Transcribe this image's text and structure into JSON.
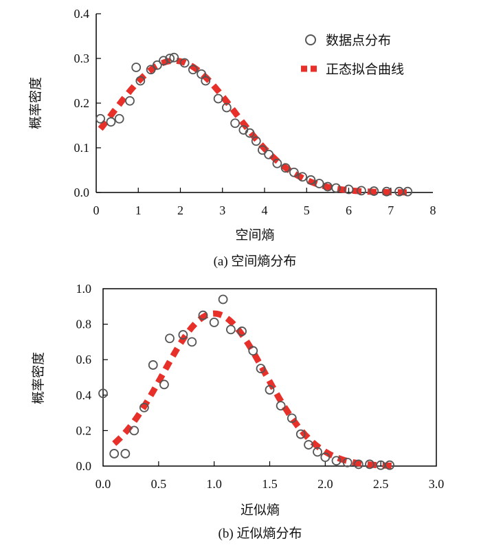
{
  "chart_data": [
    {
      "type": "scatter",
      "caption": "(a) 空间熵分布",
      "xlabel": "空间熵",
      "ylabel": "概率密度",
      "xlim": [
        0,
        8
      ],
      "ylim": [
        0,
        0.4
      ],
      "xticks": [
        "0",
        "1",
        "2",
        "3",
        "4",
        "5",
        "6",
        "7",
        "8"
      ],
      "yticks": [
        "0.0",
        "0.1",
        "0.2",
        "0.3",
        "0.4"
      ],
      "legend_position": "top-right",
      "series": [
        {
          "name": "数据点分布",
          "kind": "scatter",
          "color": "#555555",
          "x": [
            0.1,
            0.35,
            0.55,
            0.8,
            0.95,
            1.05,
            1.3,
            1.45,
            1.6,
            1.75,
            1.85,
            2.1,
            2.3,
            2.5,
            2.6,
            2.9,
            3.1,
            3.3,
            3.5,
            3.65,
            3.8,
            3.95,
            4.1,
            4.3,
            4.5,
            4.7,
            4.9,
            5.1,
            5.3,
            5.5,
            5.7,
            6.0,
            6.3,
            6.6,
            6.9,
            7.2,
            7.4
          ],
          "y": [
            0.165,
            0.158,
            0.165,
            0.205,
            0.28,
            0.25,
            0.275,
            0.285,
            0.295,
            0.3,
            0.302,
            0.29,
            0.275,
            0.265,
            0.25,
            0.21,
            0.19,
            0.155,
            0.14,
            0.133,
            0.115,
            0.095,
            0.085,
            0.065,
            0.055,
            0.045,
            0.035,
            0.028,
            0.02,
            0.013,
            0.01,
            0.007,
            0.004,
            0.003,
            0.002,
            0.002,
            0.002
          ]
        },
        {
          "name": "正态拟合曲线",
          "kind": "fit",
          "color": "#e8302a",
          "mu": 1.85,
          "sigma": 1.45,
          "peak": 0.295,
          "x_range": [
            0.1,
            7.4
          ]
        }
      ]
    },
    {
      "type": "scatter",
      "caption": "(b) 近似熵分布",
      "xlabel": "近似熵",
      "ylabel": "概率密度",
      "xlim": [
        0,
        3.0
      ],
      "ylim": [
        0,
        1.0
      ],
      "xticks": [
        "0.0",
        "0.5",
        "1.0",
        "1.5",
        "2.0",
        "2.5",
        "3.0"
      ],
      "yticks": [
        "0.0",
        "0.2",
        "0.4",
        "0.6",
        "0.8",
        "1.0"
      ],
      "series": [
        {
          "name": "数据点分布",
          "kind": "scatter",
          "color": "#555555",
          "x": [
            0.0,
            0.1,
            0.2,
            0.28,
            0.37,
            0.45,
            0.55,
            0.6,
            0.72,
            0.8,
            0.9,
            1.0,
            1.08,
            1.15,
            1.25,
            1.35,
            1.42,
            1.5,
            1.6,
            1.7,
            1.78,
            1.85,
            1.93,
            2.0,
            2.1,
            2.2,
            2.3,
            2.4,
            2.5,
            2.58
          ],
          "y": [
            0.41,
            0.07,
            0.07,
            0.2,
            0.33,
            0.57,
            0.46,
            0.72,
            0.74,
            0.7,
            0.85,
            0.81,
            0.94,
            0.77,
            0.76,
            0.65,
            0.55,
            0.43,
            0.34,
            0.27,
            0.18,
            0.12,
            0.08,
            0.05,
            0.03,
            0.02,
            0.01,
            0.01,
            0.005,
            0.005
          ]
        },
        {
          "name": "正态拟合曲线",
          "kind": "fit",
          "color": "#e8302a",
          "mu": 1.0,
          "sigma": 0.46,
          "peak": 0.86,
          "x_range": [
            0.1,
            2.6
          ]
        }
      ]
    }
  ]
}
